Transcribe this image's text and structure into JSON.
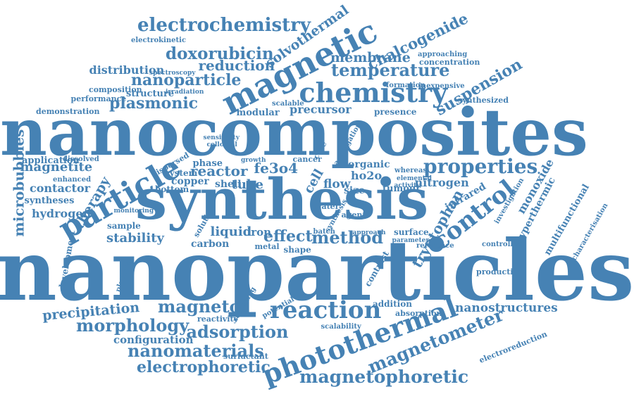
{
  "color": "#4682b4",
  "words": [
    "nanoparticles",
    "nanocomposites",
    "synthesis",
    "magnetic",
    "chemistry",
    "particle",
    "photothermal",
    "reaction",
    "control",
    "properties",
    "electrochemistry",
    "magnetophoretic",
    "magnetometer",
    "adsorption",
    "nanomaterials",
    "morphology",
    "electrophoretic",
    "temperature",
    "doxorubicin",
    "nanoparticle",
    "plasmonic",
    "reduction",
    "reactor",
    "magneto",
    "precipitation",
    "nanostructures",
    "method",
    "effect",
    "suspension",
    "chalcogenide",
    "membrane",
    "solvothermal",
    "microbubbles",
    "magnetite",
    "fe3o4",
    "therapy",
    "stability",
    "tryptophan",
    "nitrogen",
    "monoxide",
    "hyperthermic",
    "distribution",
    "configuration",
    "contactor",
    "hydrogen",
    "syntheses",
    "application",
    "structure",
    "precursor",
    "liquid",
    "iron",
    "carbon",
    "flow",
    "tube",
    "shell",
    "copper",
    "phase",
    "system",
    "bottom",
    "cell",
    "size",
    "ho2o",
    "tumour",
    "organic",
    "infrared",
    "multifunctional",
    "development",
    "surfactant",
    "contrast",
    "addition",
    "electroreduction",
    "production",
    "reference",
    "controlled",
    "characterisation",
    "investigation",
    "synthesized",
    "inexpensive",
    "concentration",
    "approaching",
    "formation",
    "presence",
    "modular",
    "scalable",
    "composition",
    "performance",
    "demonstration",
    "electrokinetic",
    "spectroscopy",
    "irradiation",
    "sample",
    "platform",
    "reactivity",
    "potential",
    "absorption",
    "scalability",
    "surface",
    "agent",
    "water",
    "shape",
    "metal",
    "dispersed",
    "dissolved",
    "enhanced",
    "growth",
    "cancer",
    "approach",
    "batch",
    "solution",
    "aggregation",
    "sensitivity",
    "colloidal",
    "screening",
    "whereas",
    "elemental",
    "parameter",
    "activity",
    "monitoring",
    "synthesis",
    "core"
  ]
}
